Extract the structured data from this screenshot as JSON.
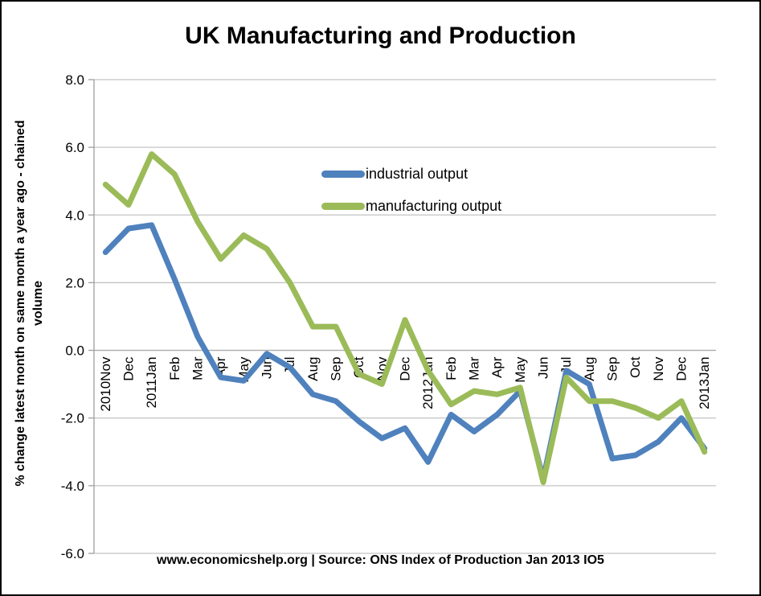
{
  "chart_data": {
    "type": "line",
    "title": "UK Manufacturing and Production",
    "ylabel_line1": "% change latest month on same month a year ago - chained",
    "ylabel_line2": "volume",
    "caption": "www.economicshelp.org | Source: ONS Index of Production Jan 2013 IO5",
    "categories": [
      "2010Nov",
      "Dec",
      "2011Jan",
      "Feb",
      "Mar",
      "Apr",
      "May",
      "Jun",
      "Jul",
      "Aug",
      "Sep",
      "Oct",
      "Nov",
      "Dec",
      "2012Jan",
      "Feb",
      "Mar",
      "Apr",
      "May",
      "Jun",
      "Jul",
      "Aug",
      "Sep",
      "Oct",
      "Nov",
      "Dec",
      "2013Jan"
    ],
    "series": [
      {
        "name": "industrial output",
        "color": "#4f81bd",
        "values": [
          2.9,
          3.6,
          3.7,
          2.1,
          0.4,
          -0.8,
          -0.9,
          -0.1,
          -0.5,
          -1.3,
          -1.5,
          -2.1,
          -2.6,
          -2.3,
          -3.3,
          -1.9,
          -2.4,
          -1.9,
          -1.2,
          -3.8,
          -0.6,
          -1.0,
          -3.2,
          -3.1,
          -2.7,
          -2.0,
          -2.9
        ]
      },
      {
        "name": "manufacturing output",
        "color": "#9bbb59",
        "values": [
          4.9,
          4.3,
          5.8,
          5.2,
          3.8,
          2.7,
          3.4,
          3.0,
          2.0,
          0.7,
          0.7,
          -0.7,
          -1.0,
          0.9,
          -0.6,
          -1.6,
          -1.2,
          -1.3,
          -1.1,
          -3.9,
          -0.8,
          -1.5,
          -1.5,
          -1.7,
          -2.0,
          -1.5,
          -3.0
        ]
      }
    ],
    "ylim": [
      -6,
      8
    ],
    "ytick_step": 2,
    "yticks": [
      "8.0",
      "6.0",
      "4.0",
      "2.0",
      "0.0",
      "-2.0",
      "-4.0",
      "-6.0"
    ],
    "grid": true,
    "legend_position": "inside-top-center",
    "colors": {
      "gridline": "#c3c3c3",
      "zero_axis": "#ababab",
      "axis": "#9f9f9f",
      "text": "#000000",
      "background": "#ffffff"
    }
  }
}
